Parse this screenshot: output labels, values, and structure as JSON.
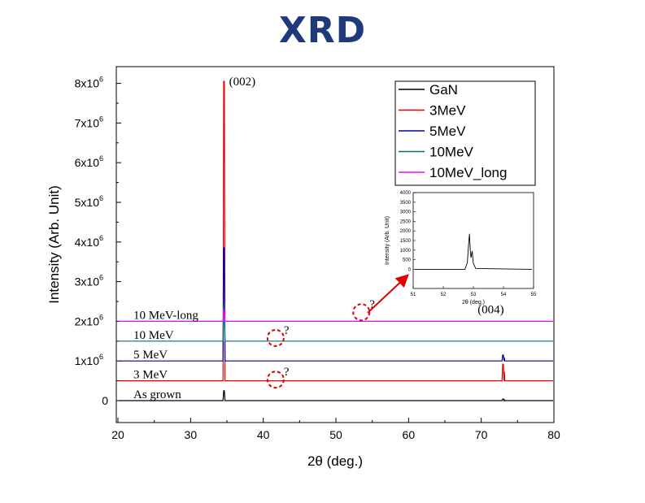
{
  "title": "XRD",
  "chart_data": {
    "type": "line",
    "xlabel": "2θ (deg.)",
    "ylabel": "Intensity (Arb. Unit)",
    "xlim": [
      20,
      80
    ],
    "ylim": [
      -200000,
      8500000
    ],
    "x_ticks": [
      20,
      30,
      40,
      50,
      60,
      70,
      80
    ],
    "y_ticks": [
      {
        "value": 0,
        "label": "0"
      },
      {
        "value": 1000000,
        "label": "1x10",
        "exp": "6"
      },
      {
        "value": 2000000,
        "label": "2x10",
        "exp": "6"
      },
      {
        "value": 3000000,
        "label": "3x10",
        "exp": "6"
      },
      {
        "value": 4000000,
        "label": "4x10",
        "exp": "6"
      },
      {
        "value": 5000000,
        "label": "5x10",
        "exp": "6"
      },
      {
        "value": 6000000,
        "label": "6x10",
        "exp": "6"
      },
      {
        "value": 7000000,
        "label": "7x10",
        "exp": "6"
      },
      {
        "value": 8000000,
        "label": "8x10",
        "exp": "6"
      }
    ],
    "series": [
      {
        "name": "GaN",
        "label": "As grown",
        "color": "#000000",
        "offset": 0,
        "peaks": [
          {
            "x": 34.6,
            "height": 250000
          },
          {
            "x": 73.0,
            "height": 40000
          }
        ]
      },
      {
        "name": "3MeV",
        "label": "3 MeV",
        "color": "#e00000",
        "offset": 500000,
        "peaks": [
          {
            "x": 34.6,
            "height": 7550000
          },
          {
            "x": 73.0,
            "height": 420000
          }
        ]
      },
      {
        "name": "5MeV",
        "label": "5 MeV",
        "color": "#0000a0",
        "offset": 1000000,
        "peaks": [
          {
            "x": 34.6,
            "height": 2850000
          },
          {
            "x": 73.0,
            "height": 150000
          }
        ]
      },
      {
        "name": "10MeV",
        "label": "10 MeV",
        "color": "#007070",
        "offset": 1500000,
        "peaks": [
          {
            "x": 34.6,
            "height": 900000
          }
        ]
      },
      {
        "name": "10MeV_long",
        "label": "10 MeV-long",
        "color": "#ff00ff",
        "offset": 2000000,
        "peaks": [
          {
            "x": 34.6,
            "height": 300000
          }
        ]
      }
    ],
    "annotations": [
      {
        "text": "(002)",
        "x": 35.3,
        "y": 7950000
      },
      {
        "text": "(004)",
        "x": 69.5,
        "y": 2200000
      }
    ],
    "question_marks": [
      {
        "text": "?",
        "x": 41.7,
        "y": 1600000
      },
      {
        "text": "?",
        "x": 41.7,
        "y": 550000
      },
      {
        "text": "?",
        "x": 53.5,
        "y": 2250000
      }
    ],
    "legend": {
      "placement": "top-right"
    },
    "inset": {
      "ylabel": "Intensity (Arb. Unit)",
      "xlabel": "2θ (deg.)",
      "xlim": [
        51,
        55
      ],
      "ylim": [
        -1000,
        4000
      ],
      "x_ticks": [
        51,
        52,
        53,
        54,
        55
      ],
      "y_ticks": [
        0,
        500,
        1000,
        1500,
        2000,
        2500,
        3000,
        3500,
        4000
      ],
      "baseline": 0,
      "peaks": [
        {
          "x": 52.87,
          "height": 1850
        },
        {
          "x": 52.96,
          "height": 950
        }
      ],
      "color": "#000000"
    }
  }
}
